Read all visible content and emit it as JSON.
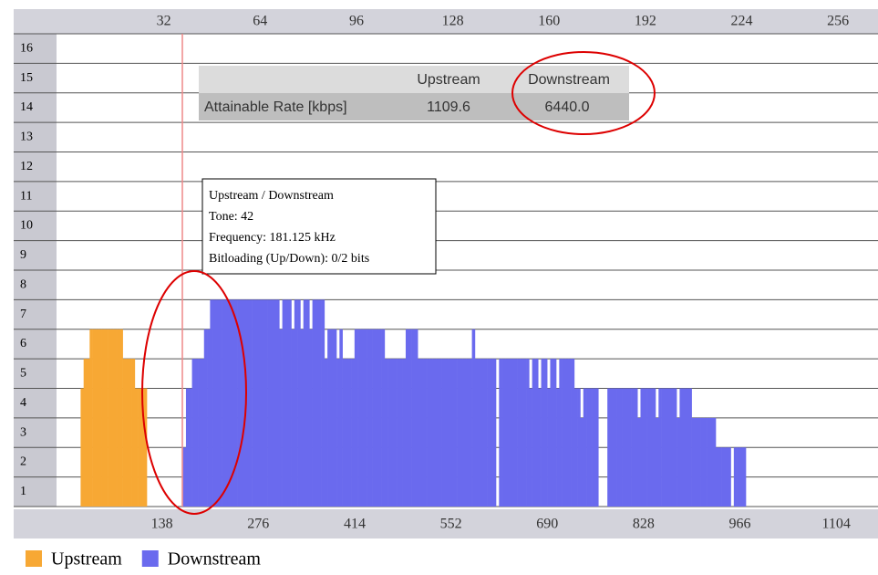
{
  "chart_data": {
    "type": "bar",
    "x": [
      6,
      7,
      8,
      9,
      10,
      11,
      12,
      13,
      14,
      15,
      16,
      17,
      18,
      19,
      20,
      21,
      22,
      23,
      24,
      25,
      26,
      27,
      28,
      29,
      30,
      31,
      32,
      33,
      34,
      35,
      36,
      37,
      38,
      39,
      40,
      41,
      42,
      43,
      44,
      45,
      46,
      47,
      48,
      49,
      50,
      51,
      52,
      53,
      54,
      55,
      56,
      57,
      58,
      59,
      60,
      61,
      62,
      63,
      64,
      65,
      66,
      67,
      68,
      69,
      70,
      71,
      72,
      73,
      74,
      75,
      76,
      77,
      78,
      79,
      80,
      81,
      82,
      83,
      84,
      85,
      86,
      87,
      88,
      89,
      90,
      91,
      92,
      93,
      94,
      95,
      96,
      97,
      98,
      99,
      100,
      101,
      102,
      103,
      104,
      105,
      106,
      107,
      108,
      109,
      110,
      111,
      112,
      113,
      114,
      115,
      116,
      117,
      118,
      119,
      120,
      121,
      122,
      123,
      124,
      125,
      126,
      127,
      128,
      129,
      130,
      131,
      132,
      133,
      134,
      135,
      136,
      137,
      138,
      139,
      140,
      141,
      142,
      143,
      144,
      145,
      146,
      147,
      148,
      149,
      150,
      151,
      152,
      153,
      154,
      155,
      156,
      157,
      158,
      159,
      160,
      161,
      162,
      163,
      164,
      165,
      166,
      167,
      168,
      169,
      170,
      171,
      172,
      173,
      174,
      175,
      176,
      177,
      178,
      179,
      180,
      181,
      182,
      183,
      184,
      185,
      186,
      187,
      188,
      189,
      190,
      191,
      192,
      193,
      194,
      195,
      196,
      197,
      198,
      199,
      200,
      201,
      202,
      203,
      204,
      205,
      206,
      207,
      208,
      209,
      210,
      211,
      212,
      213,
      214,
      215,
      216,
      217,
      218,
      219,
      220,
      221,
      222,
      223,
      224,
      225,
      226,
      227,
      228
    ],
    "series": [
      {
        "name": "Upstream",
        "color": "#f7a834",
        "values": [
          0,
          0,
          4,
          5,
          5,
          6,
          6,
          6,
          6,
          6,
          6,
          6,
          6,
          6,
          6,
          6,
          5,
          5,
          5,
          5,
          4,
          4,
          4,
          4,
          0,
          0,
          0,
          0,
          0,
          0,
          0,
          0,
          0,
          0,
          0,
          0,
          0,
          0,
          0,
          0,
          0,
          0,
          0,
          0,
          0,
          0,
          0,
          0,
          0,
          0,
          0,
          0,
          0,
          0,
          0,
          0,
          0,
          0,
          0,
          0,
          0,
          0,
          0,
          0,
          0,
          0,
          0,
          0,
          0,
          0,
          0,
          0,
          0,
          0,
          0,
          0,
          0,
          0,
          0,
          0,
          0,
          0,
          0,
          0,
          0,
          0,
          0,
          0,
          0,
          0,
          0,
          0,
          0,
          0,
          0,
          0,
          0,
          0,
          0,
          0,
          0,
          0,
          0,
          0,
          0,
          0,
          0,
          0,
          0,
          0,
          0,
          0,
          0,
          0,
          0,
          0,
          0,
          0,
          0,
          0,
          0,
          0,
          0,
          0,
          0,
          0,
          0,
          0,
          0,
          0,
          0,
          0,
          0,
          0,
          0,
          0,
          0,
          0,
          0,
          0,
          0,
          0,
          0,
          0,
          0,
          0,
          0,
          0,
          0,
          0,
          0,
          0,
          0,
          0,
          0,
          0,
          0,
          0,
          0,
          0,
          0,
          0,
          0,
          0,
          0,
          0,
          0,
          0,
          0,
          0,
          0,
          0,
          0,
          0,
          0,
          0,
          0,
          0,
          0,
          0,
          0,
          0,
          0,
          0,
          0,
          0,
          0,
          0,
          0,
          0,
          0,
          0,
          0,
          0,
          0,
          0,
          0,
          0,
          0,
          0,
          0,
          0,
          0,
          0,
          0,
          0,
          0,
          0,
          0,
          0,
          0,
          0,
          0,
          0,
          0,
          0,
          0,
          0,
          0,
          0,
          0,
          0,
          0
        ]
      },
      {
        "name": "Downstream",
        "color": "#6a6aee",
        "values": [
          0,
          0,
          0,
          0,
          0,
          0,
          0,
          0,
          0,
          0,
          0,
          0,
          0,
          0,
          0,
          0,
          0,
          0,
          0,
          0,
          0,
          0,
          0,
          0,
          0,
          0,
          0,
          0,
          0,
          0,
          0,
          0,
          0,
          0,
          0,
          0,
          2,
          4,
          4,
          5,
          5,
          5,
          5,
          6,
          6,
          7,
          7,
          7,
          7,
          7,
          7,
          7,
          7,
          7,
          7,
          7,
          7,
          7,
          7,
          7,
          7,
          7,
          7,
          7,
          7,
          7,
          7,
          7,
          6,
          7,
          7,
          7,
          6,
          7,
          7,
          6,
          7,
          7,
          6,
          7,
          7,
          7,
          7,
          5,
          6,
          6,
          6,
          5,
          6,
          5,
          5,
          5,
          5,
          6,
          6,
          6,
          6,
          6,
          6,
          6,
          6,
          6,
          6,
          5,
          5,
          5,
          5,
          5,
          5,
          5,
          6,
          6,
          6,
          6,
          5,
          5,
          5,
          5,
          5,
          5,
          5,
          5,
          5,
          5,
          5,
          5,
          5,
          5,
          5,
          5,
          5,
          5,
          6,
          5,
          5,
          5,
          5,
          5,
          5,
          5,
          0,
          5,
          5,
          5,
          5,
          5,
          5,
          5,
          5,
          5,
          5,
          4,
          5,
          5,
          4,
          5,
          5,
          4,
          5,
          5,
          4,
          5,
          5,
          5,
          5,
          5,
          4,
          4,
          3,
          4,
          4,
          4,
          4,
          4,
          0,
          0,
          0,
          4,
          4,
          4,
          4,
          4,
          4,
          4,
          4,
          4,
          4,
          3,
          4,
          4,
          4,
          4,
          4,
          3,
          4,
          4,
          4,
          4,
          4,
          4,
          3,
          4,
          4,
          4,
          4,
          3,
          3,
          3,
          3,
          3,
          3,
          3,
          3,
          2,
          2,
          2,
          2,
          2,
          0,
          2,
          2,
          2,
          2
        ]
      }
    ],
    "xlim": [
      0,
      272
    ],
    "xticks": [
      32,
      64,
      96,
      128,
      160,
      192,
      224,
      256
    ],
    "x2lim": [
      0,
      1173
    ],
    "x2ticks": [
      138,
      276,
      414,
      552,
      690,
      828,
      966,
      1104
    ],
    "ylim": [
      0,
      16
    ],
    "yticks": [
      1,
      2,
      3,
      4,
      5,
      6,
      7,
      8,
      9,
      10,
      11,
      12,
      13,
      14,
      15,
      16
    ],
    "grid": true,
    "legend": "bottom-left"
  },
  "rate_table": {
    "header": [
      "Upstream",
      "Downstream"
    ],
    "row": [
      "Attainable Rate [kbps]",
      "1109.6",
      "6440.0"
    ]
  },
  "tooltip": {
    "lines": [
      "Upstream / Downstream",
      "Tone: 42",
      "Frequency: 181.125 kHz",
      "Bitloading (Up/Down): 0/2 bits"
    ]
  }
}
